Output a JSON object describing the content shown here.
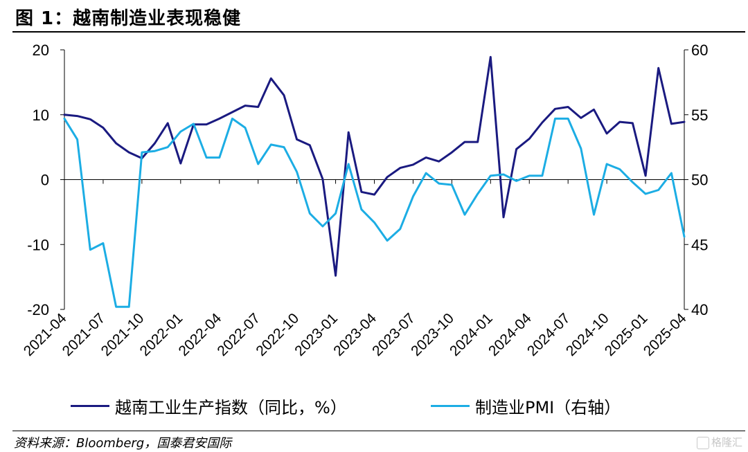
{
  "header": {
    "title": "图 1：越南制造业表现稳健"
  },
  "footer": {
    "source": "资料来源：Bloomberg，国泰君安国际",
    "watermark": "格隆汇"
  },
  "chart_data": {
    "type": "line",
    "title": "图 1：越南制造业表现稳健",
    "x": [
      "2021-04",
      "2021-05",
      "2021-06",
      "2021-07",
      "2021-08",
      "2021-09",
      "2021-10",
      "2021-11",
      "2021-12",
      "2022-01",
      "2022-02",
      "2022-03",
      "2022-04",
      "2022-05",
      "2022-06",
      "2022-07",
      "2022-08",
      "2022-09",
      "2022-10",
      "2022-11",
      "2022-12",
      "2023-01",
      "2023-02",
      "2023-03",
      "2023-04",
      "2023-05",
      "2023-06",
      "2023-07",
      "2023-08",
      "2023-09",
      "2023-10",
      "2023-11",
      "2023-12",
      "2024-01",
      "2024-02",
      "2024-03",
      "2024-04",
      "2024-05",
      "2024-06",
      "2024-07",
      "2024-08",
      "2024-09",
      "2024-10",
      "2024-11",
      "2024-12",
      "2025-01",
      "2025-02",
      "2025-03",
      "2025-04"
    ],
    "xticks": [
      "2021-04",
      "2021-07",
      "2021-10",
      "2022-01",
      "2022-04",
      "2022-07",
      "2022-10",
      "2023-01",
      "2023-04",
      "2023-07",
      "2023-10",
      "2024-01",
      "2024-04",
      "2024-07",
      "2024-10",
      "2025-01",
      "2025-04"
    ],
    "y_left": {
      "ylim": [
        -20,
        20
      ],
      "ticks": [
        -20,
        -10,
        0,
        10,
        20
      ]
    },
    "y_right": {
      "ylim": [
        40,
        60
      ],
      "ticks": [
        40,
        45,
        50,
        55,
        60
      ]
    },
    "series": [
      {
        "name": "越南工业生产指数（同比，%）",
        "axis": "left",
        "color": "#1a1a80",
        "values": [
          10.0,
          9.8,
          9.3,
          8.0,
          5.6,
          4.2,
          3.3,
          5.6,
          8.7,
          2.5,
          8.5,
          8.5,
          9.4,
          10.4,
          11.4,
          11.2,
          15.6,
          13.0,
          6.2,
          5.3,
          0.1,
          -14.8,
          7.3,
          -1.9,
          -2.3,
          0.4,
          1.8,
          2.3,
          3.4,
          2.8,
          4.2,
          5.8,
          5.8,
          18.9,
          -5.8,
          4.7,
          6.3,
          8.8,
          10.9,
          11.2,
          9.5,
          10.8,
          7.1,
          8.9,
          8.7,
          0.6,
          17.2,
          8.6,
          8.9
        ]
      },
      {
        "name": "制造业PMI（右轴）",
        "axis": "right",
        "color": "#1cade4",
        "values": [
          54.7,
          53.1,
          44.6,
          45.1,
          40.2,
          40.2,
          52.1,
          52.2,
          52.5,
          53.7,
          54.3,
          51.7,
          51.7,
          54.7,
          54.0,
          51.2,
          52.7,
          52.5,
          50.6,
          47.4,
          46.4,
          47.4,
          51.2,
          47.7,
          46.7,
          45.3,
          46.2,
          48.7,
          50.5,
          49.7,
          49.6,
          47.3,
          48.9,
          50.3,
          50.4,
          49.9,
          50.3,
          50.3,
          54.7,
          54.7,
          52.4,
          47.3,
          51.2,
          50.8,
          49.8,
          48.9,
          49.2,
          50.5,
          45.6
        ]
      }
    ]
  }
}
